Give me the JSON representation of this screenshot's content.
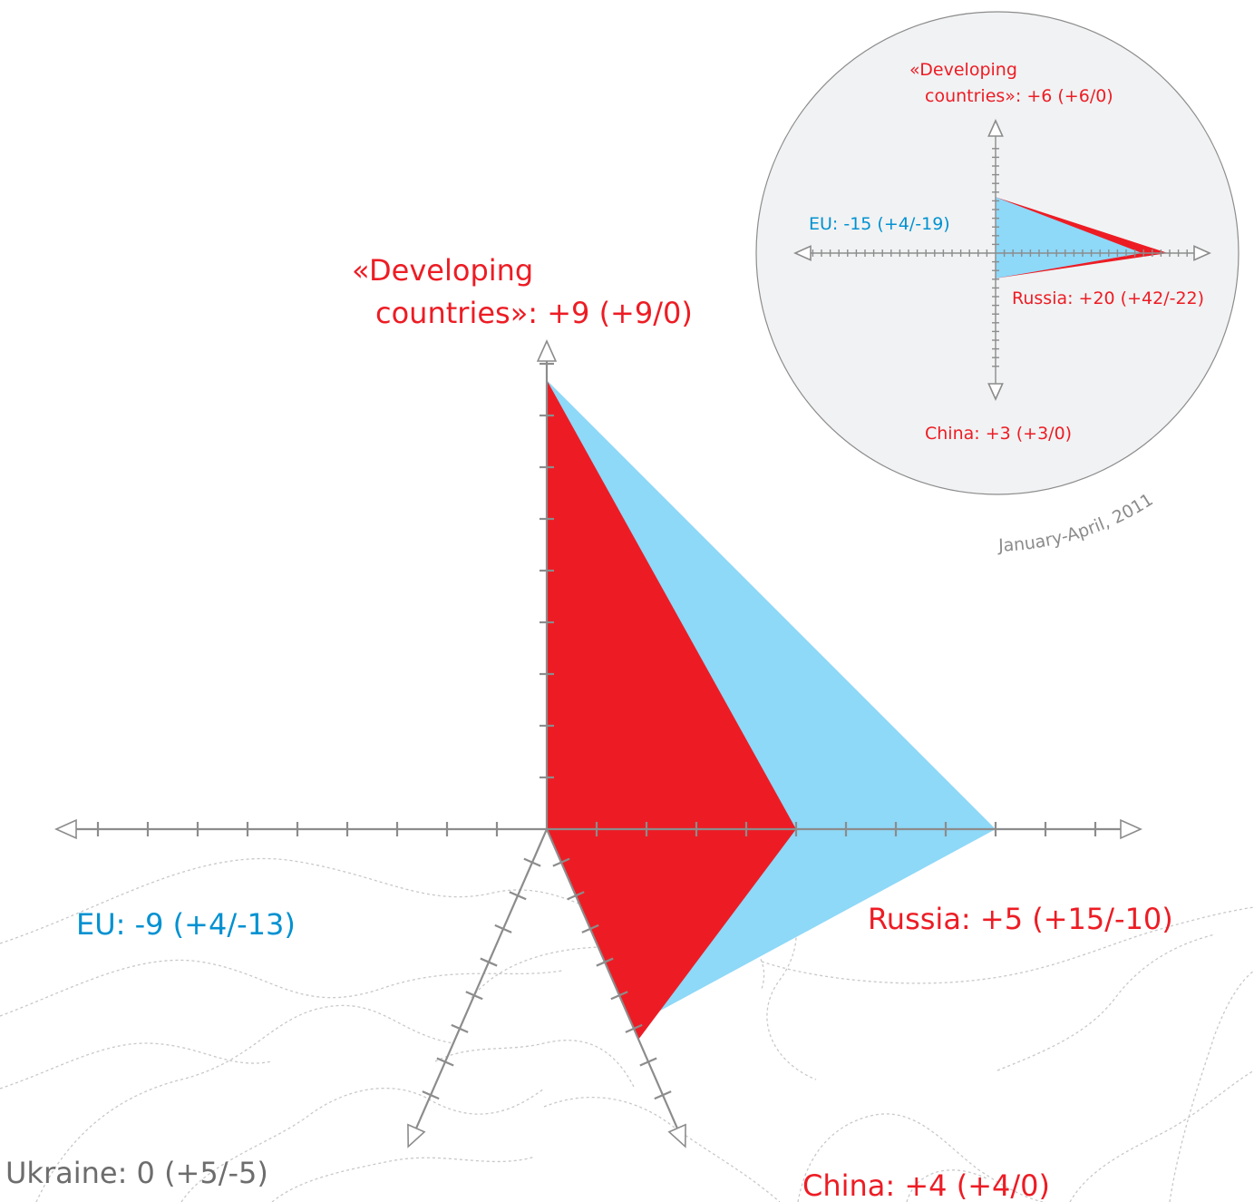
{
  "colors": {
    "red": "#ed1c24",
    "blue": "#8ed8f8",
    "eu_text": "#0091d1",
    "axis": "#8c8c8c",
    "ukraine_text": "#6d6d6d",
    "inset_bg": "#f1f2f3"
  },
  "chart_data": [
    {
      "type": "radar",
      "axes": [
        {
          "key": "developing",
          "line1": "«Developing",
          "line2": "countries»: +9 (+9/0)"
        },
        {
          "key": "russia",
          "label": "Russia: +5 (+15/-10)"
        },
        {
          "key": "china",
          "label": "China: +4 (+4/0)"
        },
        {
          "key": "ukraine",
          "label": "Ukraine: 0 (+5/-5)"
        },
        {
          "key": "eu",
          "label": "EU: -9 (+4/-13)"
        }
      ],
      "series": [
        {
          "color": "blue",
          "values": {
            "developing": 9,
            "russia": 9,
            "china": 4.3,
            "ukraine": 0,
            "eu": 0
          }
        },
        {
          "color": "red",
          "values": {
            "developing": 9,
            "russia": 5,
            "china": 4.6,
            "ukraine": 0,
            "eu": 0
          }
        }
      ]
    },
    {
      "type": "radar",
      "caption": "January-April, 2011",
      "axes": [
        {
          "key": "developing",
          "line1": "«Developing",
          "line2": "countries»: +6 (+6/0)"
        },
        {
          "key": "russia",
          "label": "Russia: +20 (+42/-22)"
        },
        {
          "key": "china",
          "label": "China: +3 (+3/0)"
        },
        {
          "key": "eu",
          "label": "EU: -15 (+4/-19)"
        }
      ],
      "series": [
        {
          "color": "red",
          "values": {
            "developing": 6,
            "russia": 20,
            "china": 3,
            "eu": 0
          }
        },
        {
          "color": "blue",
          "values": {
            "developing": 6,
            "russia": 17,
            "china": 3,
            "eu": 0
          }
        }
      ]
    }
  ]
}
